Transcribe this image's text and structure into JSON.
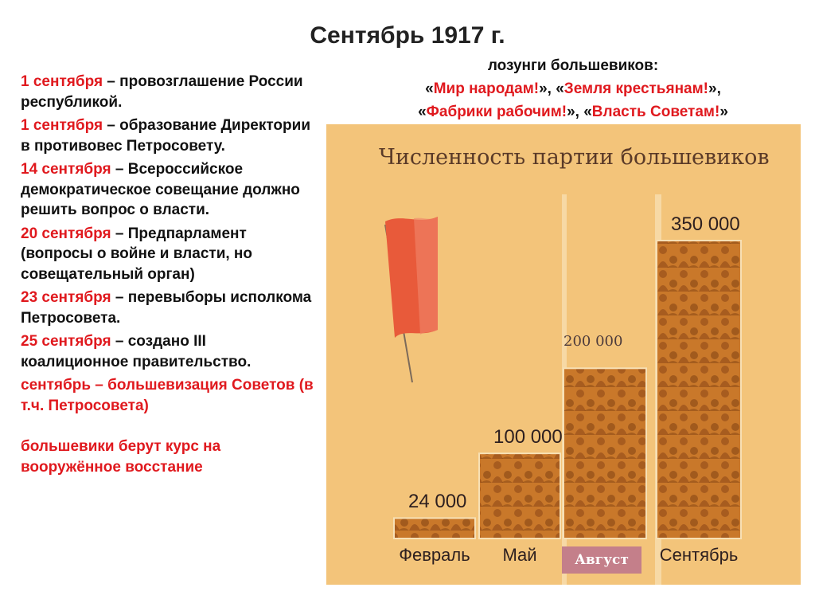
{
  "slide": {
    "title": "Сентябрь 1917 г.",
    "events": [
      {
        "date": "1 сентября",
        "text": " – провозглашение России республикой."
      },
      {
        "date": "1 сентября",
        "text": " – образование Директории в противовес Петросовету."
      },
      {
        "date": "14 сентября",
        "text": " – Всероссийское демократическое совещание должно решить вопрос о власти."
      },
      {
        "date": "20 сентября",
        "text": " – Предпарламент (вопросы о войне и власти, но совещательный орган)"
      },
      {
        "date": "23 сентября",
        "text": " – перевыборы исполкома Петросовета."
      },
      {
        "date": "25 сентября",
        "text": " – создано III коалиционное правительство."
      }
    ],
    "bolshevization": "сентябрь – большевизация Советов (в т.ч. Петросовета)",
    "armed_uprising": "большевики берут курс на вооружённое восстание",
    "slogans_header": "лозунги большевиков:",
    "slogans": [
      "Мир народам!",
      "Земля крестьянам!",
      "Фабрики рабочим!",
      "Власть Советам!"
    ]
  },
  "colors": {
    "accent_red": "#e0191e",
    "panel_bg": "#f3c47a",
    "bar_fill": "#c9782a",
    "bar_silhouette": "#8a4515",
    "flag": "#e85a3a"
  },
  "chart_data": {
    "type": "bar",
    "title": "Численность партии большевиков",
    "categories": [
      "Февраль",
      "Май",
      "Август",
      "Сентябрь"
    ],
    "values": [
      24000,
      100000,
      200000,
      350000
    ],
    "value_labels": [
      "24 000",
      "100 000",
      "200 000",
      "350 000"
    ],
    "highlighted_category": "Август",
    "ylim": [
      0,
      350000
    ],
    "grid": false,
    "xlabel": "",
    "ylabel": ""
  }
}
